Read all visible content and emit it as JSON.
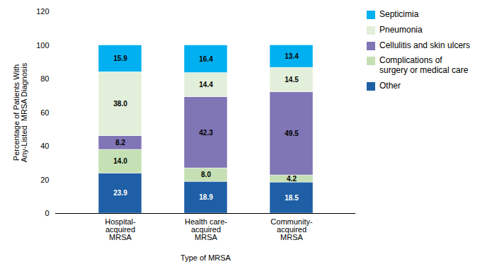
{
  "chart_data": {
    "type": "bar",
    "stacked": true,
    "categories": [
      "Hospital-\nacquired\nMRSA",
      "Health care-\nacquired\nMRSA",
      "Community-\nacquired\nMRSA"
    ],
    "series": [
      {
        "name": "Other",
        "color": "#1F5FA6",
        "values": [
          23.9,
          18.9,
          18.5
        ],
        "value_labels": [
          "23.9",
          "18.9",
          "18.5"
        ]
      },
      {
        "name": "Complications of\nsurgery or medical care",
        "color": "#C5E0B4",
        "values": [
          14.0,
          8.0,
          4.2
        ],
        "value_labels": [
          "14.0",
          "8.0",
          "4.2"
        ]
      },
      {
        "name": "Cellulitis and skin ulcers",
        "color": "#8075B5",
        "values": [
          8.2,
          42.3,
          49.5
        ],
        "value_labels": [
          "8.2",
          "42.3",
          "49.5"
        ]
      },
      {
        "name": "Pneumonia",
        "color": "#E2EFDA",
        "values": [
          38.0,
          14.4,
          14.5
        ],
        "value_labels": [
          "38.0",
          "14.4",
          "14.5"
        ]
      },
      {
        "name": "Septicimia",
        "color": "#00B0F0",
        "values": [
          15.9,
          16.4,
          13.4
        ],
        "value_labels": [
          "15.9",
          "16.4",
          "13.4"
        ]
      }
    ],
    "ylabel": "Percentage of Patients With\nAny-Listed  MRSA Diagnosis",
    "xlabel": "Type of MRSA",
    "ylim": [
      0,
      120
    ],
    "yticks": [
      0,
      20,
      40,
      60,
      80,
      100,
      120
    ],
    "data_labels": true,
    "legend": "right",
    "grid": false
  }
}
